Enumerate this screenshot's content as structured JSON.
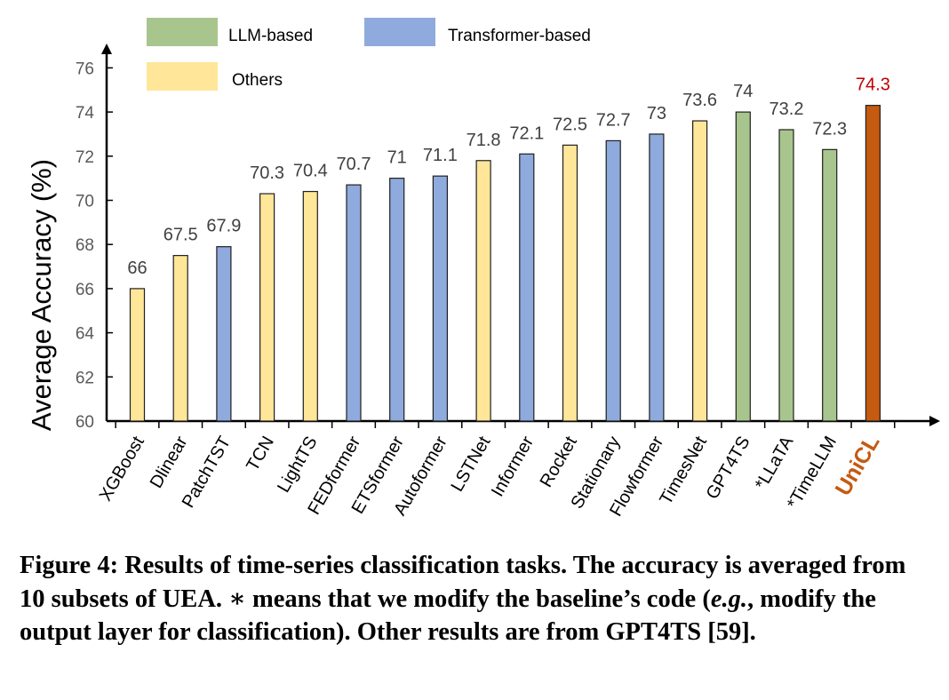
{
  "chart_data": {
    "type": "bar",
    "ylabel": "Average Accuracy (%)",
    "xlabel": "",
    "ylim": [
      60,
      76
    ],
    "yticks": [
      60,
      62,
      64,
      66,
      68,
      70,
      72,
      74,
      76
    ],
    "grid": false,
    "legend": {
      "placement": "top-left",
      "entries": [
        {
          "name": "LLM-based",
          "color": "#a9c58e"
        },
        {
          "name": "Transformer-based",
          "color": "#8faadc"
        },
        {
          "name": "Others",
          "color": "#ffe699"
        }
      ]
    },
    "categories": [
      "XGBoost",
      "Dlinear",
      "PatchTST",
      "TCN",
      "LightTS",
      "FEDformer",
      "ETSformer",
      "Autoformer",
      "LSTNet",
      "Informer",
      "Rocket",
      "Stationary",
      "Flowformer",
      "TimesNet",
      "GPT4TS",
      "*LLaTA",
      "*TimeLLM",
      "UniCL"
    ],
    "values": [
      66,
      67.5,
      67.9,
      70.3,
      70.4,
      70.7,
      71,
      71.1,
      71.8,
      72.1,
      72.5,
      72.7,
      73,
      73.6,
      74,
      73.2,
      72.3,
      74.3
    ],
    "value_labels": [
      "66",
      "67.5",
      "67.9",
      "70.3",
      "70.4",
      "70.7",
      "71",
      "71.1",
      "71.8",
      "72.1",
      "72.5",
      "72.7",
      "73",
      "73.6",
      "74",
      "73.2",
      "72.3",
      "74.3"
    ],
    "groups": [
      "Others",
      "Others",
      "Transformer-based",
      "Others",
      "Others",
      "Transformer-based",
      "Transformer-based",
      "Transformer-based",
      "Others",
      "Transformer-based",
      "Others",
      "Transformer-based",
      "Transformer-based",
      "Others",
      "LLM-based",
      "LLM-based",
      "LLM-based",
      "UniCL"
    ],
    "colors": {
      "LLM-based": "#a9c58e",
      "Transformer-based": "#8faadc",
      "Others": "#ffe699",
      "UniCL": "#c55a11",
      "highlight_label": "#c00000",
      "highlight_category": "#c55a11"
    }
  },
  "caption": {
    "part1": "Figure 4: Results of time-series classification tasks. The accuracy is averaged from 10 subsets of UEA. ∗ means that we modify the baseline’s code (",
    "italic": "e.g.",
    "part2": ", modify the output layer for classification). Other results are from GPT4TS [59]."
  }
}
